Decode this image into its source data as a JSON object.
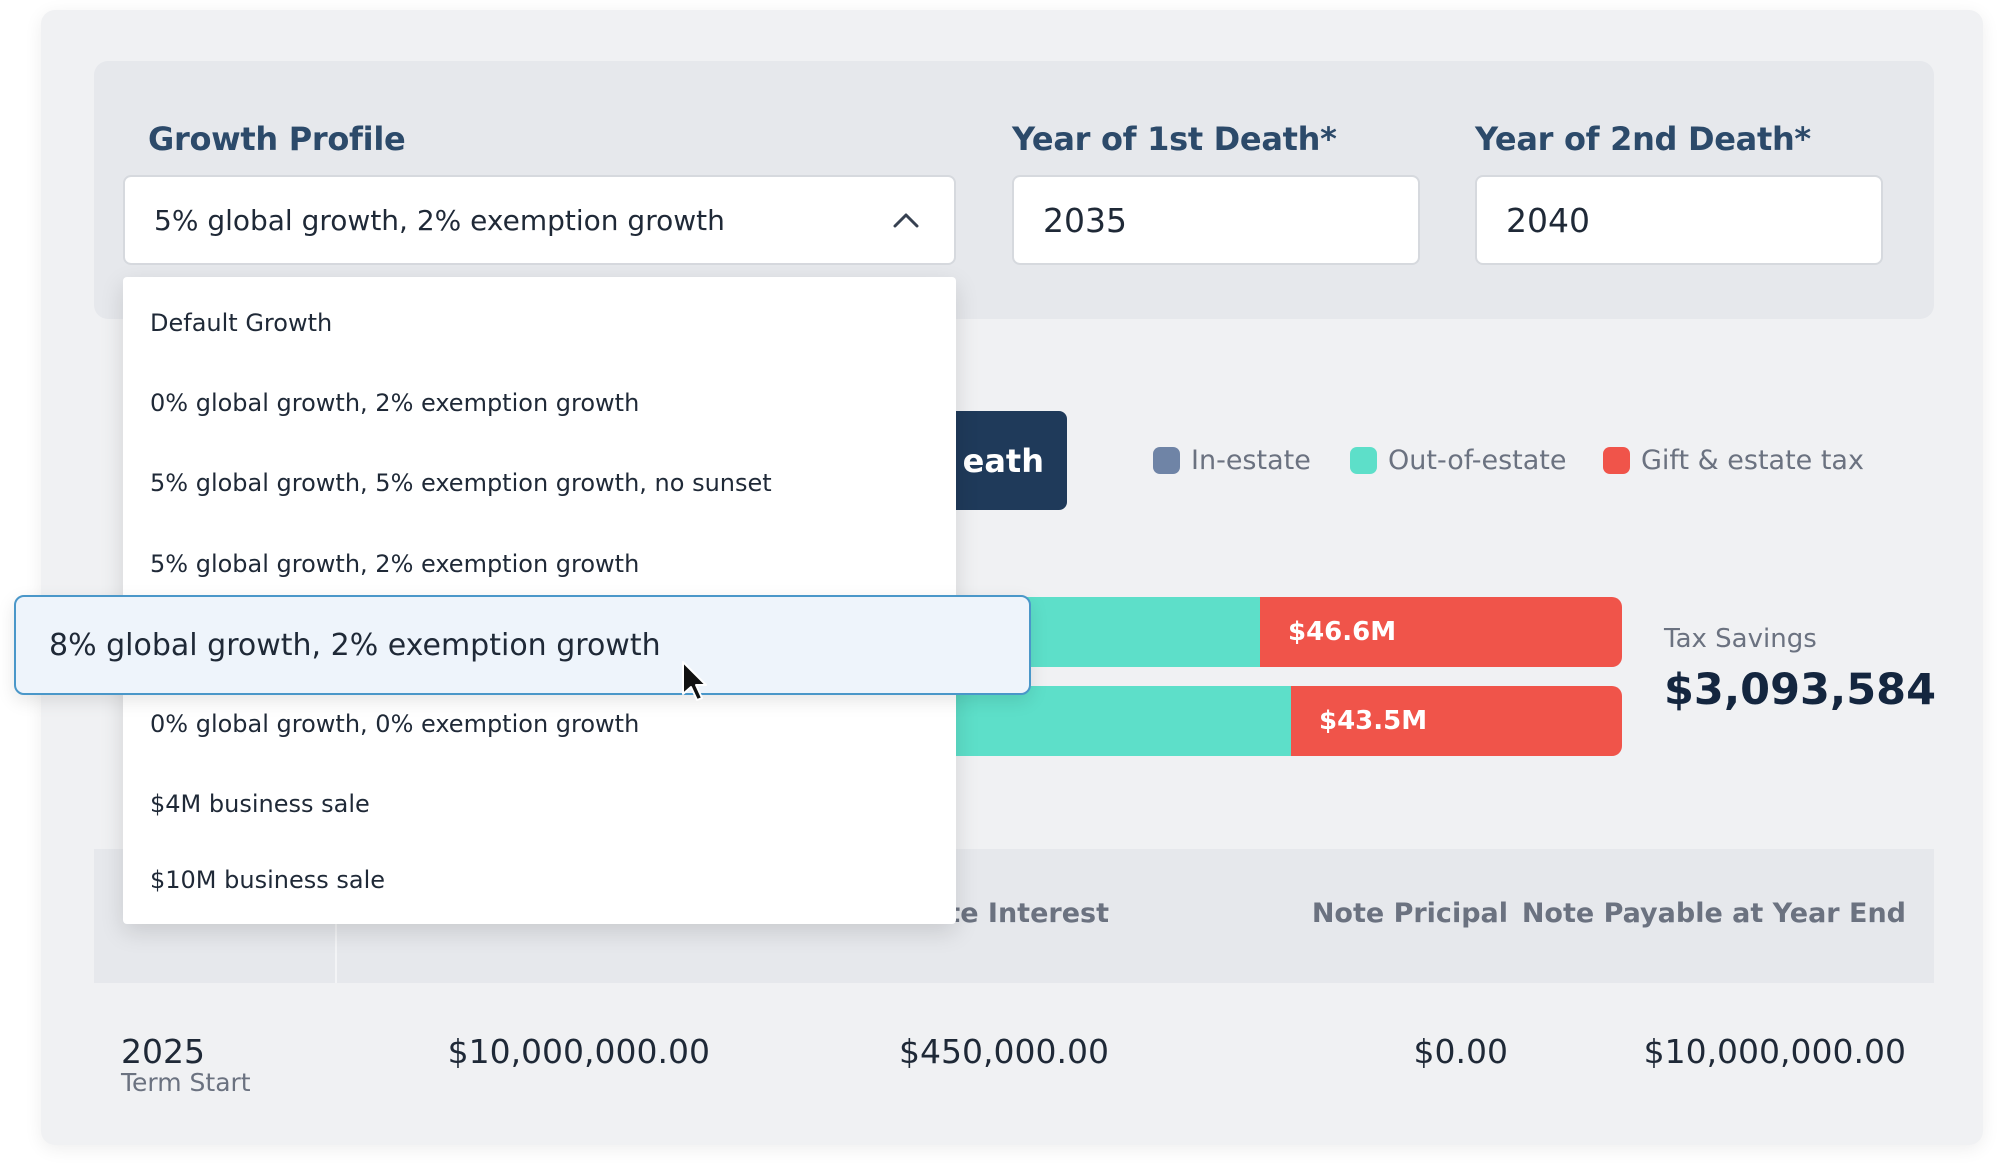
{
  "filters": {
    "growth_profile": {
      "label": "Growth Profile",
      "value": "5% global growth, 2% exemption growth"
    },
    "first_death": {
      "label": "Year of 1st Death*",
      "value": "2035"
    },
    "second_death": {
      "label": "Year of 2nd Death*",
      "value": "2040"
    }
  },
  "calc_button": {
    "visible_label": "eath"
  },
  "legend": [
    {
      "label": "In-estate",
      "color": "#6f84a6"
    },
    {
      "label": "Out-of-estate",
      "color": "#5ddfc9"
    },
    {
      "label": "Gift & estate tax",
      "color": "#f0544a"
    }
  ],
  "bars": [
    {
      "tax_label": "$46.6M"
    },
    {
      "tax_label": "$43.5M"
    }
  ],
  "savings": {
    "label": "Tax Savings",
    "value": "$3,093,584"
  },
  "table": {
    "headers": [
      "ote Interest",
      "Note Pricipal",
      "Note Payable at Year End"
    ],
    "row": {
      "year": "2025",
      "sub": "Term Start",
      "balance": "$10,000,000.00",
      "interest": "$450,000.00",
      "principal": "$0.00",
      "payable": "$10,000,000.00"
    }
  },
  "dropdown": {
    "options": [
      "Default Growth",
      "0% global growth, 2% exemption growth",
      "5% global growth, 5% exemption growth, no sunset",
      "5% global growth, 2% exemption growth",
      "8% global growth, 2% exemption growth",
      "0% global growth, 0% exemption growth",
      "$4M business sale",
      "$10M business sale"
    ],
    "hovered": "8% global growth, 2% exemption growth"
  }
}
